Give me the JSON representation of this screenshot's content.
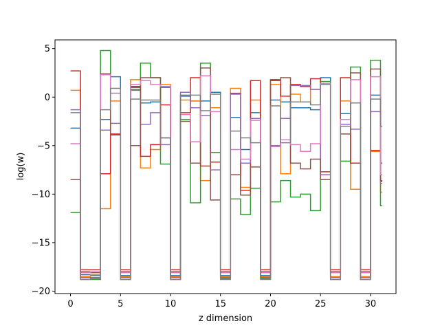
{
  "chart_data": {
    "type": "line",
    "step": "post",
    "title": "",
    "xlabel": "z dimension",
    "ylabel": "log(w)",
    "xlim": [
      -1.55,
      32.55
    ],
    "ylim": [
      -20.25,
      5.9
    ],
    "xticks": [
      0,
      5,
      10,
      15,
      20,
      25,
      30
    ],
    "yticks": [
      -20,
      -15,
      -10,
      -5,
      0,
      5
    ],
    "grid": false,
    "legend": "none",
    "x": [
      0,
      1,
      2,
      3,
      4,
      5,
      6,
      7,
      8,
      9,
      10,
      11,
      12,
      13,
      14,
      15,
      16,
      17,
      18,
      19,
      20,
      21,
      22,
      23,
      24,
      25,
      26,
      27,
      28,
      29,
      30,
      31
    ],
    "series": [
      {
        "color": "#1f77b4",
        "values": [
          -3.2,
          -18.3,
          -18.4,
          -2.3,
          2.1,
          -18.4,
          1.1,
          -0.6,
          -0.5,
          1.0,
          -18.4,
          0.1,
          -0.4,
          -0.4,
          0.5,
          -18.4,
          -2.1,
          -5.4,
          -1.6,
          -18.4,
          -0.3,
          -0.5,
          -1.1,
          -1.1,
          -1.3,
          2.0,
          -18.5,
          -1.7,
          -0.6,
          -18.5,
          0.2,
          -6.8
        ]
      },
      {
        "color": "#ff7f0e",
        "values": [
          0.7,
          -18.5,
          -18.3,
          -11.5,
          -0.4,
          -18.5,
          1.8,
          -7.3,
          -5.4,
          1.3,
          -18.5,
          -0.3,
          -0.4,
          -8.6,
          -1.1,
          -18.5,
          0.9,
          -9.3,
          -0.3,
          -18.5,
          1.3,
          -7.9,
          0.3,
          -0.5,
          0.8,
          1.6,
          -18.5,
          -0.4,
          -9.5,
          -18.5,
          -5.6,
          -9.8
        ]
      },
      {
        "color": "#2ca02c",
        "values": [
          -11.9,
          -18.8,
          -18.8,
          4.8,
          0.4,
          -18.8,
          0.8,
          3.5,
          2.0,
          -6.9,
          -18.8,
          -2.3,
          -10.9,
          3.5,
          -5.7,
          -18.7,
          -10.5,
          -12.1,
          -9.4,
          -18.7,
          -10.8,
          -8.6,
          -10.3,
          -10.0,
          -11.7,
          1.6,
          -18.8,
          -6.6,
          3.1,
          -18.8,
          3.8,
          -11.2
        ]
      },
      {
        "color": "#d62728",
        "values": [
          2.7,
          -17.8,
          -17.8,
          -7.9,
          -3.8,
          -17.8,
          1.0,
          -6.1,
          -4.9,
          -0.8,
          -17.8,
          -1.6,
          2.0,
          -7.1,
          -6.7,
          -17.8,
          0.4,
          -9.6,
          1.7,
          -17.8,
          1.8,
          0.1,
          1.3,
          1.1,
          1.9,
          -7.7,
          -17.8,
          2.0,
          -6.8,
          -17.8,
          -5.5,
          -8.7
        ]
      },
      {
        "color": "#9467bd",
        "values": [
          -1.3,
          -18.6,
          -18.6,
          -3.4,
          -2.7,
          -18.6,
          0.7,
          -2.8,
          -1.6,
          -4.9,
          -18.6,
          0.5,
          -1.1,
          -1.9,
          -7.5,
          -18.6,
          0.3,
          -6.8,
          -2.2,
          -18.6,
          -5.0,
          -2.2,
          1.2,
          1.2,
          0.8,
          -8.0,
          -18.6,
          -2.8,
          -3.3,
          -18.6,
          -1.5,
          -8.9
        ]
      },
      {
        "color": "#8c564b",
        "values": [
          -8.5,
          -18.0,
          -18.1,
          2.4,
          -3.9,
          -18.0,
          -5.0,
          2.0,
          2.0,
          -4.2,
          -18.0,
          -2.5,
          -6.8,
          3.0,
          -10.6,
          -18.0,
          -8.0,
          -10.1,
          -7.2,
          -18.0,
          1.7,
          2.0,
          -6.8,
          -7.4,
          -6.4,
          -8.5,
          -18.0,
          -3.8,
          2.5,
          -18.0,
          2.9,
          -8.6
        ]
      },
      {
        "color": "#e377c2",
        "values": [
          -4.8,
          -18.1,
          -18.0,
          2.3,
          0.4,
          -18.1,
          1.3,
          1.7,
          1.3,
          1.1,
          -18.1,
          -1.8,
          -4.6,
          2.2,
          -1.5,
          -18.1,
          -5.4,
          -6.4,
          -2.4,
          -18.1,
          -5.1,
          -4.4,
          -4.9,
          -5.6,
          -4.8,
          1.4,
          -18.1,
          -2.3,
          1.8,
          -18.1,
          2.1,
          -8.0
        ]
      },
      {
        "color": "#7f7f7f",
        "values": [
          -1.6,
          -18.8,
          -18.7,
          -1.3,
          0.9,
          -18.8,
          -0.2,
          -0.3,
          -0.3,
          -4.2,
          -18.8,
          0.2,
          0.2,
          -1.4,
          0.3,
          -18.8,
          -3.5,
          -4.2,
          -4.7,
          -18.8,
          -0.9,
          -4.7,
          -0.5,
          -0.5,
          -0.8,
          1.3,
          -18.8,
          -3.0,
          -0.6,
          -18.8,
          -0.2,
          -3.0
        ]
      }
    ]
  }
}
